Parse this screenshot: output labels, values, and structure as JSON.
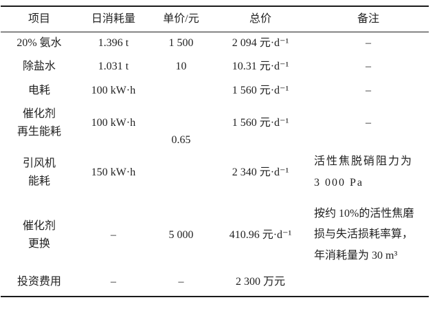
{
  "page": {
    "background_color": "#ffffff",
    "text_color": "#222222",
    "rule_color": "#1a1a1a"
  },
  "table": {
    "columns": [
      "项目",
      "日消耗量",
      "单价/元",
      "总价",
      "备注"
    ],
    "rows": [
      {
        "item": "20% 氨水",
        "daily": "1.396 t",
        "price": "1 500",
        "total": "2 094 元·d⁻¹",
        "note": "–"
      },
      {
        "item": "除盐水",
        "daily": "1.031 t",
        "price": "10",
        "total": "10.31 元·d⁻¹",
        "note": "–"
      },
      {
        "item": "电耗",
        "daily": "100 kW·h",
        "price": "0.65",
        "total": "1 560 元·d⁻¹",
        "note": "–"
      },
      {
        "item": "催化剂\n再生能耗",
        "daily": "100 kW·h",
        "total": "1 560 元·d⁻¹",
        "note": "–"
      },
      {
        "item": "引风机\n能耗",
        "daily": "150 kW·h",
        "total": "2 340 元·d⁻¹",
        "note": "活性焦脱硝阻力为\n3 000 Pa"
      },
      {
        "item": "催化剂\n更换",
        "daily": "–",
        "price": "5 000",
        "total": "410.96 元·d⁻¹",
        "note": "按约 10%的活性焦磨\n损与失活损耗率算，\n年消耗量为 30 m³"
      },
      {
        "item": "投资费用",
        "daily": "–",
        "price": "–",
        "total": "2 300 万元",
        "note": ""
      }
    ]
  }
}
